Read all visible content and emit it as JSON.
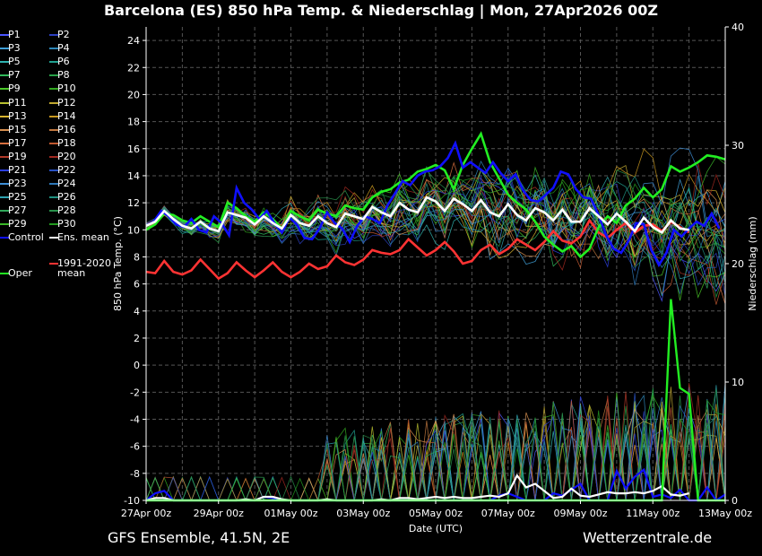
{
  "header": {
    "title": "Barcelona  (ES)  850 hPa Temp. & Niederschlag | Mon, 27Apr2026 00Z"
  },
  "footer": {
    "model": "GFS Ensemble, 41.5N, 2E",
    "source": "Wetterzentrale.de"
  },
  "legend": {
    "members": [
      "P1",
      "P2",
      "P3",
      "P4",
      "P5",
      "P6",
      "P7",
      "P8",
      "P9",
      "P10",
      "P11",
      "P12",
      "P13",
      "P14",
      "P15",
      "P16",
      "P17",
      "P18",
      "P19",
      "P20",
      "P21",
      "P22",
      "P23",
      "P24",
      "P25",
      "P26",
      "P27",
      "P28",
      "P29",
      "P30"
    ],
    "control": "Control",
    "ens_mean": "Ens. mean",
    "oper": "Oper",
    "climate_line1": "1991-2020",
    "climate_line2": "mean"
  },
  "colors": {
    "members": [
      "#4a55ff",
      "#2c3fbf",
      "#3fa0d8",
      "#2e87b8",
      "#2fb3b0",
      "#20a090",
      "#30b85a",
      "#28a048",
      "#4ac828",
      "#32a820",
      "#b8c030",
      "#c0a830",
      "#d8b430",
      "#c89820",
      "#d89050",
      "#c07840",
      "#d87040",
      "#c05830",
      "#b03828",
      "#a02820",
      "#2c3fdf",
      "#2850c0",
      "#3f90d8",
      "#2e78b8",
      "#2fa3b0",
      "#209080",
      "#30a85a",
      "#28904a",
      "#3ab828",
      "#229a20"
    ],
    "control": "#1010ff",
    "ens_mean": "#ffffff",
    "oper": "#22ee22",
    "climate": "#ff3333",
    "grid": "#555555",
    "axis": "#ffffff"
  },
  "chart_data": {
    "type": "line",
    "title": "Barcelona  (ES)  850 hPa Temp. & Niederschlag | Mon, 27Apr2026 00Z",
    "xlabel": "Date (UTC)",
    "ylabel": "850 hPa Temp. (°C)",
    "y2label": "Niederschlag (mm)",
    "x_unit": "hours since 27Apr 00z, 6-hourly steps",
    "x_ticks": [
      "27Apr 00z",
      "29Apr 00z",
      "01May 00z",
      "03May 00z",
      "05May 00z",
      "07May 00z",
      "09May 00z",
      "11May 00z",
      "13May 00z"
    ],
    "x_tick_hours": [
      0,
      48,
      96,
      144,
      192,
      240,
      288,
      336,
      384
    ],
    "xlim": [
      0,
      384
    ],
    "ylim": [
      -10,
      25
    ],
    "y_ticks": [
      -10,
      -8,
      -6,
      -4,
      -2,
      0,
      2,
      4,
      6,
      8,
      10,
      12,
      14,
      16,
      18,
      20,
      22,
      24
    ],
    "y2lim": [
      0,
      40
    ],
    "y2_ticks": [
      0,
      10,
      20,
      30,
      40
    ],
    "grid": true,
    "legend_position": "left-outside",
    "series_temperature": {
      "control": [
        10.3,
        10.6,
        11.4,
        11.0,
        10.4,
        10.2,
        10.8,
        10.0,
        9.8,
        11.0,
        10.5,
        9.6,
        13.1,
        12.0,
        11.5,
        10.8,
        11.4,
        10.5,
        9.8,
        10.9,
        10.4,
        9.4,
        9.3,
        10.1,
        11.3,
        10.5,
        10.1,
        9.1,
        10.3,
        11.0,
        10.8,
        10.5,
        11.8,
        12.7,
        13.6,
        13.3,
        14.0,
        14.3,
        14.4,
        14.7,
        15.3,
        16.4,
        14.6,
        15.0,
        14.6,
        14.2,
        15.0,
        14.2,
        13.6,
        14.1,
        12.9,
        12.2,
        12.1,
        12.6,
        13.1,
        14.3,
        14.1,
        13.0,
        12.4,
        12.3,
        11.1,
        9.6,
        8.6,
        8.3,
        9.2,
        10.5,
        10.4,
        8.5,
        7.4,
        8.3,
        10.0,
        9.5,
        10.1,
        10.6,
        10.3,
        11.2,
        10.1
      ],
      "ens_mean": [
        10.3,
        10.6,
        11.4,
        10.8,
        10.3,
        10.1,
        10.6,
        10.1,
        9.9,
        11.3,
        11.1,
        10.9,
        10.4,
        11.0,
        10.5,
        10.1,
        11.1,
        10.5,
        10.3,
        11.0,
        10.5,
        10.2,
        11.2,
        11.0,
        10.8,
        11.7,
        11.3,
        11.0,
        12.0,
        11.5,
        11.3,
        12.4,
        12.1,
        11.4,
        12.3,
        11.9,
        11.4,
        12.2,
        11.3,
        11.0,
        11.9,
        11.1,
        10.7,
        11.6,
        11.3,
        10.7,
        11.5,
        10.6,
        10.6,
        11.6,
        11.0,
        10.4,
        11.2,
        10.6,
        9.9,
        10.9,
        10.2,
        9.8,
        10.7,
        10.1,
        10.0
      ],
      "oper": [
        10.0,
        10.4,
        11.2,
        11.1,
        10.7,
        10.5,
        11.0,
        10.6,
        10.2,
        12.0,
        11.6,
        11.0,
        10.6,
        11.3,
        10.8,
        10.1,
        11.4,
        11.0,
        10.7,
        11.5,
        11.2,
        11.0,
        11.8,
        11.6,
        11.5,
        12.4,
        12.8,
        13.0,
        13.5,
        13.7,
        14.3,
        14.5,
        14.8,
        14.4,
        13.0,
        14.8,
        16.0,
        17.1,
        15.0,
        13.8,
        12.6,
        12.0,
        11.5,
        10.6,
        9.5,
        8.9,
        8.4,
        8.8,
        8.0,
        8.6,
        10.2,
        11.0,
        10.5,
        11.8,
        12.3,
        13.1,
        12.4,
        13.0,
        14.7,
        14.3,
        14.6,
        15.0,
        15.5,
        15.4,
        15.2
      ],
      "climate_mean": [
        6.9,
        6.8,
        7.7,
        6.9,
        6.7,
        7.0,
        7.8,
        7.1,
        6.4,
        6.8,
        7.6,
        7.0,
        6.5,
        7.0,
        7.6,
        6.9,
        6.5,
        6.9,
        7.5,
        7.1,
        7.3,
        8.1,
        7.6,
        7.4,
        7.8,
        8.5,
        8.3,
        8.2,
        8.5,
        9.3,
        8.7,
        8.1,
        8.5,
        9.1,
        8.4,
        7.5,
        7.7,
        8.5,
        8.9,
        8.2,
        8.6,
        9.3,
        8.9,
        8.5,
        9.1,
        9.9,
        9.2,
        9.0,
        9.5,
        10.7,
        9.8,
        9.4,
        10.0,
        10.5,
        9.8,
        10.3,
        10.4,
        9.9,
        10.6,
        10.2,
        9.8
      ]
    },
    "series_precipitation": {
      "control": [
        0,
        0.6,
        0.8,
        0,
        0,
        0,
        0,
        0,
        0,
        0,
        0,
        0,
        0,
        0.3,
        0.2,
        0,
        0,
        0,
        0,
        0,
        0,
        0,
        0,
        0,
        0,
        0,
        0,
        0,
        0,
        0,
        0,
        0,
        0,
        0,
        0,
        0,
        0,
        0,
        0,
        0.4,
        0.6,
        0.3,
        0,
        0,
        0,
        0.6,
        0.4,
        0.9,
        1.4,
        0,
        0,
        0,
        2.5,
        1.0,
        2.0,
        2.6,
        0.3,
        0.5,
        0.2,
        0.9,
        0,
        0,
        1.1,
        0,
        0.5,
        0.2,
        0.5,
        0.8,
        0.7,
        1.2,
        1.0,
        0.6,
        1.3,
        0.8,
        0.6,
        0.4,
        0.3
      ],
      "ens_mean": [
        0,
        0.2,
        0.2,
        0,
        0,
        0,
        0,
        0,
        0,
        0,
        0,
        0.1,
        0,
        0.3,
        0.3,
        0.1,
        0,
        0,
        0,
        0,
        0.1,
        0,
        0,
        0,
        0,
        0,
        0.1,
        0,
        0.2,
        0.2,
        0.1,
        0.2,
        0.3,
        0.2,
        0.3,
        0.2,
        0.2,
        0.3,
        0.4,
        0.3,
        0.6,
        2.1,
        1.1,
        1.4,
        0.8,
        0.2,
        0.3,
        1.0,
        0.4,
        0.3,
        0.5,
        0.7,
        0.6,
        0.6,
        0.7,
        0.6,
        0.8,
        1.2,
        0.5,
        0.4,
        0.6
      ],
      "oper": [
        0,
        0,
        0,
        0,
        0,
        0,
        0,
        0,
        0,
        0,
        0,
        0,
        0,
        0,
        0,
        0,
        0,
        0,
        0,
        0,
        0,
        0,
        0,
        0,
        0,
        0,
        0,
        0,
        0,
        0,
        0,
        0,
        0,
        0,
        0,
        0,
        0,
        0,
        0,
        0,
        0,
        0,
        0,
        0,
        0,
        0,
        0,
        0,
        0,
        0,
        0,
        0,
        0,
        0,
        0,
        0,
        0,
        0,
        17.0,
        9.5,
        9.0,
        0,
        0,
        0,
        0,
        0,
        0,
        0,
        0,
        0,
        0,
        0,
        0,
        0,
        0,
        0,
        0
      ]
    },
    "members_envelope_note": ""
  }
}
